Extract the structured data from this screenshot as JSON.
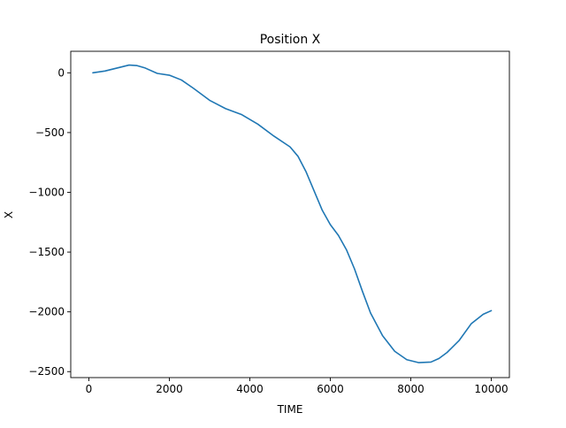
{
  "chart_data": {
    "type": "line",
    "title": "Position X",
    "xlabel": "TIME",
    "ylabel": "X",
    "xlim": [
      -450,
      10450
    ],
    "ylim": [
      -2550,
      180
    ],
    "xticks": [
      0,
      2000,
      4000,
      6000,
      8000,
      10000
    ],
    "yticks": [
      0,
      -500,
      -1000,
      -1500,
      -2000,
      -2500
    ],
    "xtick_labels": [
      "0",
      "2000",
      "4000",
      "6000",
      "8000",
      "10000"
    ],
    "ytick_labels": [
      "0",
      "−500",
      "−1000",
      "−1500",
      "−2000",
      "−2500"
    ],
    "grid": false,
    "series": [
      {
        "color": "#1f77b4",
        "x": [
          100,
          400,
          700,
          1000,
          1200,
          1400,
          1700,
          2000,
          2300,
          2600,
          3000,
          3400,
          3800,
          4200,
          4600,
          5000,
          5200,
          5400,
          5600,
          5800,
          6000,
          6200,
          6400,
          6600,
          6800,
          7000,
          7300,
          7600,
          7900,
          8200,
          8500,
          8700,
          8900,
          9200,
          9500,
          9800,
          10000
        ],
        "y": [
          0,
          15,
          40,
          65,
          60,
          40,
          -5,
          -20,
          -60,
          -130,
          -230,
          -300,
          -350,
          -430,
          -530,
          -620,
          -700,
          -830,
          -990,
          -1150,
          -1270,
          -1360,
          -1480,
          -1640,
          -1830,
          -2010,
          -2200,
          -2330,
          -2400,
          -2425,
          -2420,
          -2390,
          -2340,
          -2240,
          -2100,
          -2020,
          -1990
        ]
      }
    ]
  }
}
